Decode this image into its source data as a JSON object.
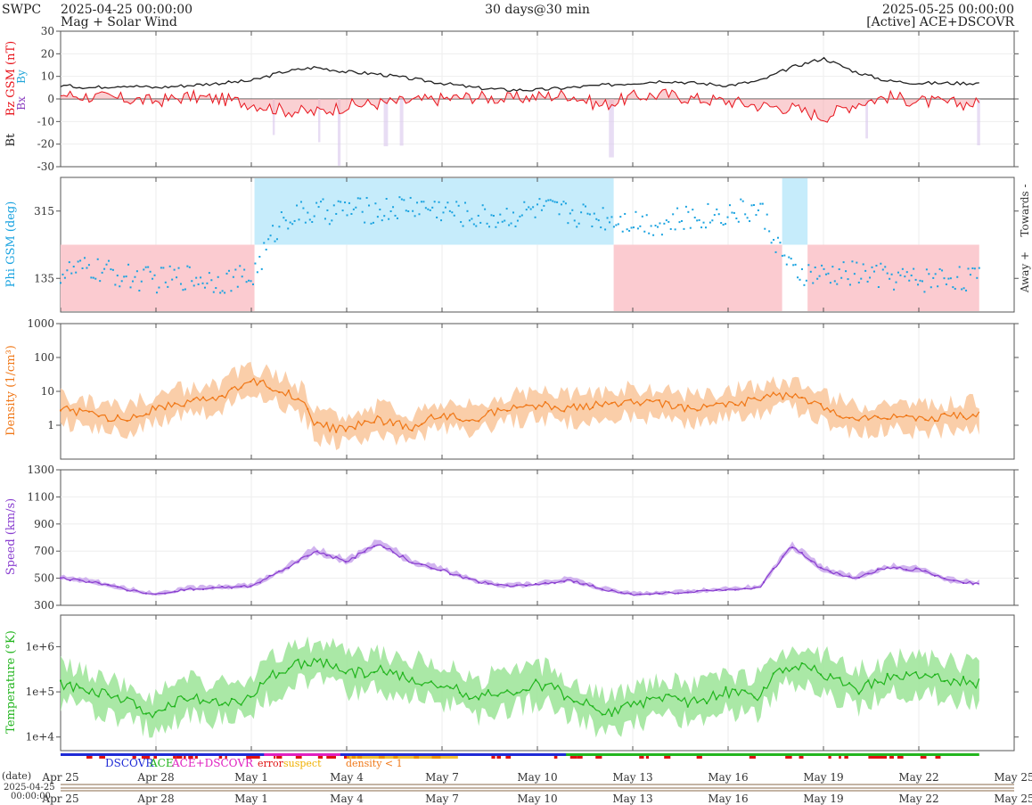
{
  "header": {
    "org": "SWPC",
    "start_time": "2025-04-25 00:00:00",
    "subtitle": "Mag + Solar Wind",
    "duration": "30 days@30 min",
    "end_time": "2025-05-25 00:00:00",
    "source": "[Active] ACE+DSCOVR"
  },
  "colors": {
    "bt": "#222222",
    "bz": "#e8141c",
    "bx": "#8b3fc0",
    "by": "#22a6d8",
    "phi": "#1aa3e0",
    "phi_towards_fill": "#c6ecfb",
    "phi_away_fill": "#fbcbd0",
    "density": "#f07818",
    "density_fill": "#f9c59a",
    "speed": "#8a3fd0",
    "speed_fill": "#c9a6ec",
    "temperature": "#22b51e",
    "temperature_fill": "#9be496",
    "dscovr": "#1f2bd6",
    "ace": "#22b51e",
    "ace_dscovr": "#e020c0",
    "error": "#e01010",
    "suspect": "#f0b000",
    "density_lt1": "#f07818"
  },
  "legend": {
    "dscovr": "DSCOVR",
    "ace": "ACE",
    "ace_dscovr": "ACE+DSCOVR",
    "error": "error",
    "suspect": "suspect",
    "density_lt1": "density < 1"
  },
  "time_axis": {
    "ticks": [
      "Apr 25",
      "Apr 28",
      "May 1",
      "May 4",
      "May 7",
      "May 10",
      "May 13",
      "May 16",
      "May 19",
      "May 22",
      "May 25"
    ],
    "tick_days": [
      0,
      3,
      6,
      9,
      12,
      15,
      18,
      21,
      24,
      27,
      30
    ],
    "date_label": "(date)",
    "date_sublabel": "2025-04-25",
    "time_sublabel": "00:00:00",
    "data_end_day": 28.9
  },
  "chart_data": [
    {
      "type": "line",
      "id": "mag",
      "ylabel_parts": [
        "Bt",
        "Bz GSM (nT)",
        "Bx",
        "By"
      ],
      "ylim": [
        -30,
        30
      ],
      "yticks": [
        -30,
        -20,
        -10,
        0,
        10,
        20,
        30
      ],
      "x_days": [
        0,
        1,
        2,
        3,
        4,
        5,
        6,
        7,
        8,
        9,
        10,
        11,
        12,
        13,
        14,
        15,
        16,
        17,
        18,
        19,
        20,
        21,
        22,
        23,
        24,
        25,
        26,
        27,
        28,
        28.9
      ],
      "series": [
        {
          "key": "bt",
          "values": [
            6,
            5,
            6,
            5,
            6,
            7,
            8,
            12,
            14,
            12,
            11,
            9,
            7,
            5,
            4,
            4,
            5,
            6,
            7,
            8,
            7,
            6,
            8,
            14,
            18,
            12,
            8,
            7,
            7,
            7
          ]
        },
        {
          "key": "bz",
          "values": [
            2,
            1,
            0,
            -1,
            1,
            0,
            -2,
            -5,
            -6,
            -3,
            -2,
            -1,
            0,
            1,
            0,
            1,
            2,
            -3,
            1,
            2,
            0,
            -1,
            -3,
            -4,
            -8,
            -2,
            1,
            -1,
            -2,
            -2
          ]
        }
      ]
    },
    {
      "type": "scatter",
      "id": "phi",
      "ylabel": "Phi GSM (deg)",
      "ylim": [
        45,
        405
      ],
      "yticks": [
        135,
        315
      ],
      "side_labels": {
        "towards": "Towards -",
        "away": "Away +"
      },
      "sector_days": [
        0,
        6.1,
        17.4,
        22.7,
        23.5,
        29
      ],
      "sector_states": [
        "away",
        "towards",
        "away",
        "towards",
        "away"
      ],
      "x_days": [
        0,
        1,
        2,
        3,
        4,
        5,
        6,
        7,
        8,
        9,
        10,
        11,
        12,
        13,
        14,
        15,
        16,
        17,
        18,
        19,
        20,
        21,
        22,
        23,
        24,
        25,
        26,
        27,
        28,
        28.9
      ],
      "values": [
        150,
        160,
        140,
        130,
        140,
        130,
        135,
        300,
        310,
        320,
        315,
        330,
        320,
        300,
        300,
        320,
        310,
        300,
        290,
        280,
        300,
        310,
        320,
        150,
        140,
        150,
        140,
        130,
        140,
        130
      ]
    },
    {
      "type": "line",
      "id": "density",
      "ylabel": "Density (1/cm³)",
      "yscale": "log",
      "ylim": [
        0.1,
        1000
      ],
      "yticks": [
        1,
        10,
        100,
        1000
      ],
      "ytick_labels": [
        "1",
        "10",
        "100",
        "1000"
      ],
      "x_days": [
        0,
        1,
        2,
        3,
        4,
        5,
        6,
        7,
        8,
        9,
        10,
        11,
        12,
        13,
        14,
        15,
        16,
        17,
        18,
        19,
        20,
        21,
        22,
        23,
        24,
        25,
        26,
        27,
        28,
        28.9
      ],
      "values": [
        3,
        2,
        1.5,
        3,
        5,
        6,
        20,
        10,
        1,
        0.7,
        1.5,
        0.8,
        2,
        1.5,
        3,
        4,
        3,
        4,
        5,
        4,
        3,
        4,
        6,
        8,
        3,
        1.5,
        2,
        1.5,
        1.8,
        2
      ]
    },
    {
      "type": "line",
      "id": "speed",
      "ylabel": "Speed (km/s)",
      "ylim": [
        300,
        1300
      ],
      "yticks": [
        300,
        500,
        700,
        900,
        1100,
        1300
      ],
      "x_days": [
        0,
        1,
        2,
        3,
        4,
        5,
        6,
        7,
        8,
        9,
        10,
        11,
        12,
        13,
        14,
        15,
        16,
        17,
        18,
        19,
        20,
        21,
        22,
        23,
        24,
        25,
        26,
        27,
        28,
        28.9
      ],
      "values": [
        500,
        470,
        420,
        380,
        420,
        430,
        440,
        560,
        700,
        620,
        760,
        620,
        560,
        480,
        440,
        450,
        490,
        420,
        380,
        390,
        400,
        420,
        430,
        740,
        560,
        500,
        580,
        560,
        480,
        460
      ]
    },
    {
      "type": "line",
      "id": "temperature",
      "ylabel": "Temperature (°K)",
      "yscale": "log",
      "ylim": [
        5000,
        5000000
      ],
      "yticks": [
        10000,
        100000,
        1000000
      ],
      "ytick_labels": [
        "1e+4",
        "1e+5",
        "1e+6"
      ],
      "x_days": [
        0,
        1,
        2,
        3,
        4,
        5,
        6,
        7,
        8,
        9,
        10,
        11,
        12,
        13,
        14,
        15,
        16,
        17,
        18,
        19,
        20,
        21,
        22,
        23,
        24,
        25,
        26,
        27,
        28,
        28.9
      ],
      "values": [
        150000,
        100000,
        60000,
        30000,
        80000,
        60000,
        70000,
        300000,
        500000,
        250000,
        300000,
        200000,
        150000,
        70000,
        100000,
        150000,
        80000,
        30000,
        50000,
        70000,
        60000,
        100000,
        80000,
        400000,
        250000,
        100000,
        200000,
        250000,
        180000,
        150000
      ]
    }
  ]
}
